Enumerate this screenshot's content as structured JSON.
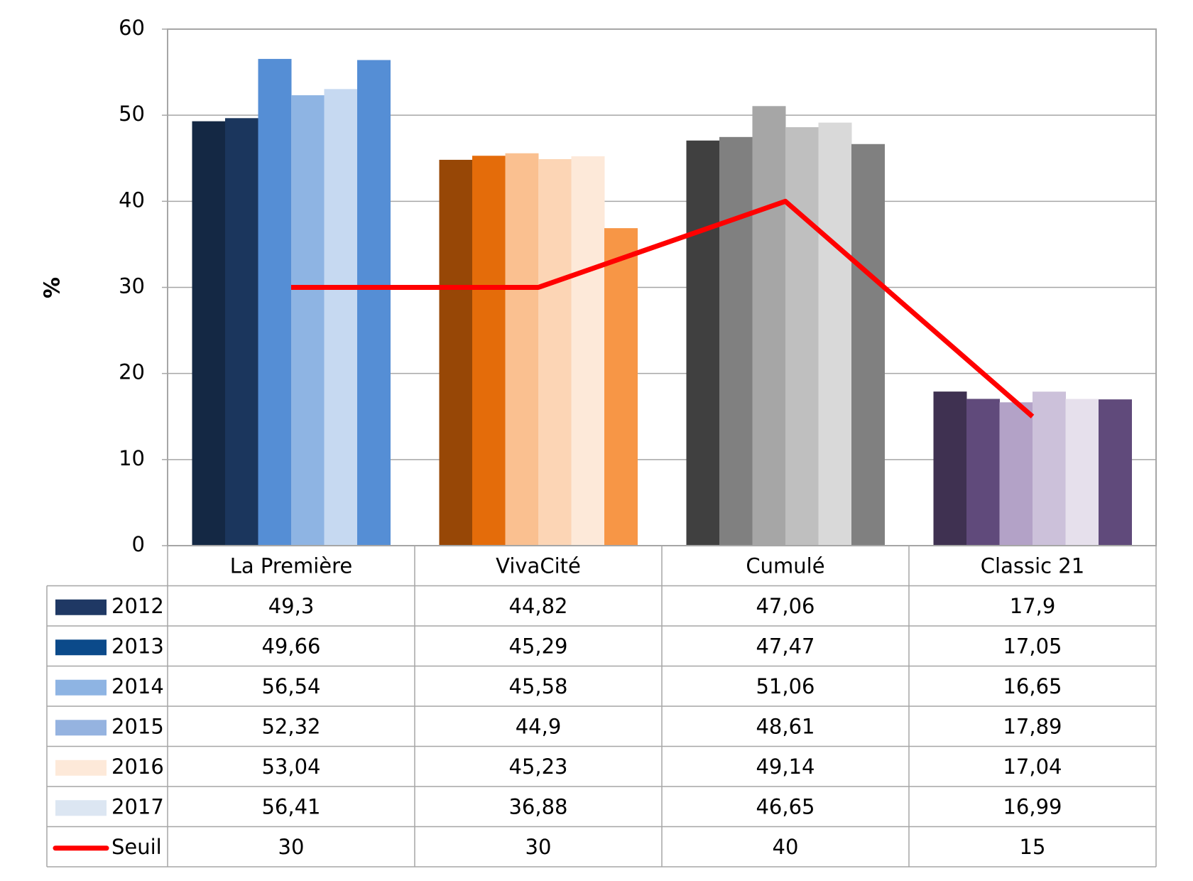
{
  "chart_data": {
    "type": "bar",
    "title": "",
    "xlabel": "",
    "ylabel": "%",
    "ylim": [
      0,
      60
    ],
    "yticks": [
      "0",
      "10",
      "20",
      "30",
      "40",
      "50",
      "60"
    ],
    "grid": true,
    "legend": "data-table-below",
    "categories": [
      "La Première",
      "VivaCité",
      "Cumulé",
      "Classic 21"
    ],
    "series": [
      {
        "name": "2012",
        "values": [
          49.3,
          44.82,
          47.06,
          17.9
        ],
        "labels": [
          "49,3",
          "44,82",
          "47,06",
          "17,9"
        ],
        "legend_color": "#1F3864"
      },
      {
        "name": "2013",
        "values": [
          49.66,
          45.29,
          47.47,
          17.05
        ],
        "labels": [
          "49,66",
          "45,29",
          "47,47",
          "17,05"
        ],
        "legend_color": "#0B4A8A"
      },
      {
        "name": "2014",
        "values": [
          56.54,
          45.58,
          51.06,
          16.65
        ],
        "labels": [
          "56,54",
          "45,58",
          "51,06",
          "16,65"
        ],
        "legend_color": "#8EB4E3"
      },
      {
        "name": "2015",
        "values": [
          52.32,
          44.9,
          48.61,
          17.89
        ],
        "labels": [
          "52,32",
          "44,9",
          "48,61",
          "17,89"
        ],
        "legend_color": "#95B3E0"
      },
      {
        "name": "2016",
        "values": [
          53.04,
          45.23,
          49.14,
          17.04
        ],
        "labels": [
          "53,04",
          "45,23",
          "49,14",
          "17,04"
        ],
        "legend_color": "#FDE9D9"
      },
      {
        "name": "2017",
        "values": [
          56.41,
          36.88,
          46.65,
          16.99
        ],
        "labels": [
          "56,41",
          "36,88",
          "46,65",
          "16,99"
        ],
        "legend_color": "#DCE6F2"
      }
    ],
    "line": {
      "name": "Seuil",
      "values": [
        30,
        30,
        40,
        15
      ],
      "labels": [
        "30",
        "30",
        "40",
        "15"
      ],
      "color": "#FF0000"
    },
    "bar_colors": [
      [
        "#142844",
        "#1B365D",
        "#558ED5",
        "#8EB4E3",
        "#C6D9F1",
        "#558ED5"
      ],
      [
        "#974706",
        "#E46C0A",
        "#FAC090",
        "#FCD5B5",
        "#FDE9D9",
        "#F79646"
      ],
      [
        "#404040",
        "#808080",
        "#A6A6A6",
        "#BFBFBF",
        "#D9D9D9",
        "#808080"
      ],
      [
        "#3F3151",
        "#604A7B",
        "#B3A2C7",
        "#CCC1DA",
        "#E6E0EC",
        "#604A7B"
      ]
    ]
  }
}
